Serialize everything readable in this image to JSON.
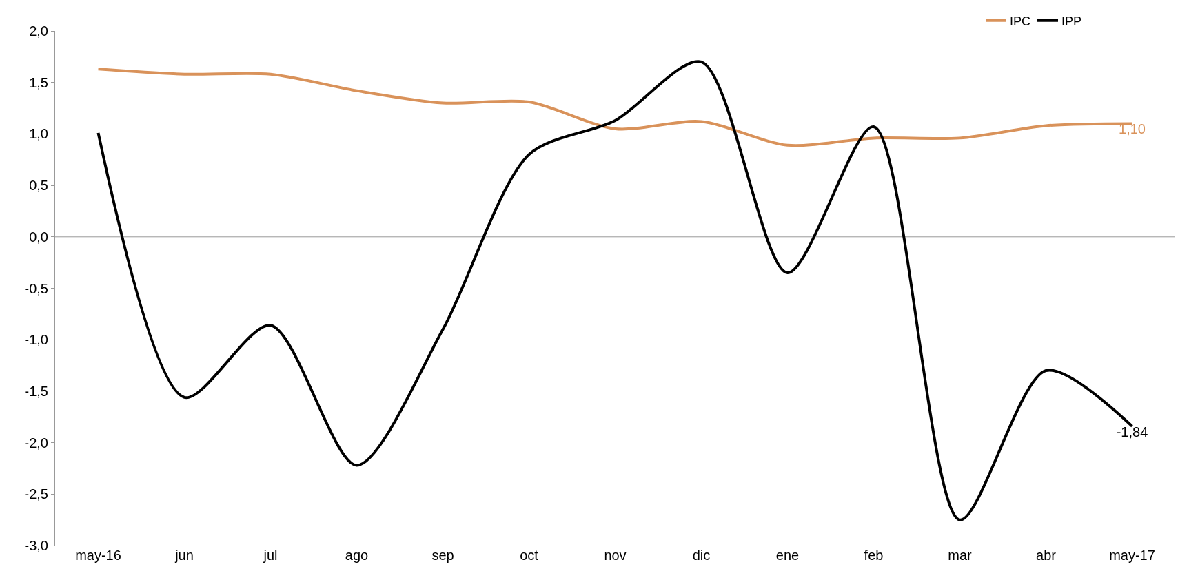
{
  "chart_data": {
    "type": "line",
    "categories": [
      "may-16",
      "jun",
      "jul",
      "ago",
      "sep",
      "oct",
      "nov",
      "dic",
      "ene",
      "feb",
      "mar",
      "abr",
      "may-17"
    ],
    "series": [
      {
        "name": "IPC",
        "color": "#d9925a",
        "values": [
          1.63,
          1.58,
          1.58,
          1.42,
          1.3,
          1.31,
          1.05,
          1.12,
          0.89,
          0.96,
          0.96,
          1.08,
          1.1
        ],
        "value_labels": [
          null,
          null,
          null,
          null,
          null,
          null,
          null,
          null,
          null,
          null,
          null,
          null,
          "1,10"
        ]
      },
      {
        "name": "IPP",
        "color": "#000000",
        "values": [
          1.01,
          -1.56,
          -0.86,
          -2.22,
          -0.9,
          0.8,
          1.13,
          1.7,
          -0.35,
          1.07,
          -2.75,
          -1.3,
          -1.84
        ],
        "value_labels": [
          null,
          null,
          null,
          null,
          null,
          null,
          null,
          null,
          null,
          null,
          null,
          null,
          "-1,84"
        ]
      }
    ],
    "ylim": [
      -3,
      2
    ],
    "yticks": [
      {
        "value": -3,
        "label": "-3,0"
      },
      {
        "value": -2.5,
        "label": "-2,5"
      },
      {
        "value": -2,
        "label": "-2,0"
      },
      {
        "value": -1.5,
        "label": "-1,5"
      },
      {
        "value": -1,
        "label": "-1,0"
      },
      {
        "value": -0.5,
        "label": "-0,5"
      },
      {
        "value": 0,
        "label": "0,0"
      },
      {
        "value": 0.5,
        "label": "0,5"
      },
      {
        "value": 1,
        "label": "1,0"
      },
      {
        "value": 1.5,
        "label": "1,5"
      },
      {
        "value": 2,
        "label": "2,0"
      }
    ],
    "ref_lines": [
      {
        "axis": "y",
        "value": 0,
        "color": "#999999"
      }
    ],
    "grid": false,
    "legend": "top right",
    "marker": "none",
    "line_style": "solid"
  }
}
